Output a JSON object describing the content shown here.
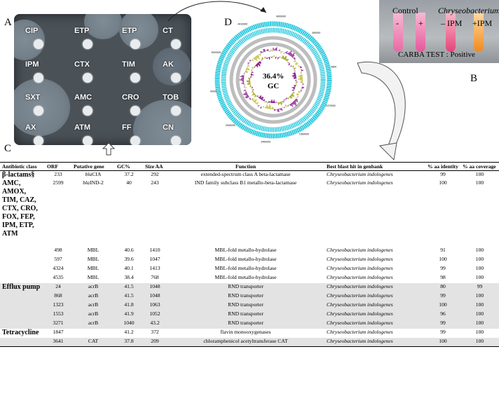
{
  "panels": {
    "a": "A",
    "b": "B",
    "c": "C",
    "d": "D"
  },
  "plate_disks": [
    "CIP",
    "ETP",
    "ETP",
    "CT",
    "IPM",
    "CTX",
    "TIM",
    "AK",
    "SXT",
    "AMC",
    "CRO",
    "TOB",
    "AX",
    "ATM",
    "FF",
    "CN"
  ],
  "carba_test": {
    "control_label": "Control",
    "minus": "-",
    "plus": "+",
    "organism": "Chryseobacterium",
    "minus_ipm": "– IPM",
    "plus_ipm": "+IPM",
    "result": "CARBA TEST : Positive"
  },
  "genome": {
    "gc_percent": "36.4%",
    "gc_label": "GC",
    "ticks": [
      "4900000",
      "490000",
      "980000",
      "1470000",
      "1960000",
      "2450000",
      "2940000",
      "3430000",
      "3920000",
      "4410000"
    ]
  },
  "table": {
    "headers": {
      "class": "Antibiotic class",
      "orf": "ORF",
      "gene": "Putative gene",
      "gc": "GC%",
      "size": "Size AA",
      "function": "Function",
      "blast": "Best blast hit in genbank",
      "identity": "% aa identity",
      "coverage": "% aa coverage"
    },
    "groups": [
      {
        "class": "β-lactams§ AMC, AMOX, TIM, CAZ, CTX, CRO, FOX, FEP, IPM, ETP, ATM",
        "rows": [
          {
            "orf": "233",
            "gene": "blaCIA",
            "gc": "37.2",
            "size": "292",
            "function": "extended-spectrum class A beta-lactamase",
            "blast": "Chryseobacterium indologenes",
            "identity": "99",
            "coverage": "100"
          },
          {
            "orf": "2599",
            "gene": "blaIND-2",
            "gc": "40",
            "size": "243",
            "function": "IND family subclass B1 metallo-beta-lactamase",
            "blast": "Chryseobacterium indologenes",
            "identity": "100",
            "coverage": "100"
          },
          {
            "orf": "498",
            "gene": "MBL",
            "gc": "40.6",
            "size": "1410",
            "function": "MBL-fold metallo-hydrolase",
            "blast": "Chryseobacterium indologenes",
            "identity": "91",
            "coverage": "100"
          },
          {
            "orf": "597",
            "gene": "MBL",
            "gc": "39.6",
            "size": "1047",
            "function": "MBL-fold metallo-hydrolase",
            "blast": "Chryseobacterium indologenes",
            "identity": "100",
            "coverage": "100"
          },
          {
            "orf": "4324",
            "gene": "MBL",
            "gc": "40.1",
            "size": "1413",
            "function": "MBL-fold metallo-hydrolase",
            "blast": "Chryseobacterium indologenes",
            "identity": "99",
            "coverage": "100"
          },
          {
            "orf": "4535",
            "gene": "MBL",
            "gc": "38.4",
            "size": "768",
            "function": "MBL-fold metallo-hydrolase",
            "blast": "Chryseobacterium indologenes",
            "identity": "98",
            "coverage": "100"
          }
        ]
      },
      {
        "class": "Efflux pump",
        "rows": [
          {
            "orf": "24",
            "gene": "acrB",
            "gc": "41.5",
            "size": "1048",
            "function": "RND transporter",
            "blast": "Chryseobacterium indologenes",
            "identity": "80",
            "coverage": "99"
          },
          {
            "orf": "868",
            "gene": "acrB",
            "gc": "41.5",
            "size": "1048",
            "function": "RND transporter",
            "blast": "Chryseobacterium indologenes",
            "identity": "99",
            "coverage": "100"
          },
          {
            "orf": "1323",
            "gene": "acrB",
            "gc": "41.8",
            "size": "1063",
            "function": "RND transporter",
            "blast": "Chryseobacterium indologenes",
            "identity": "100",
            "coverage": "100"
          },
          {
            "orf": "1553",
            "gene": "acrB",
            "gc": "41.9",
            "size": "1052",
            "function": "RND transporter",
            "blast": "Chryseobacterium indologenes",
            "identity": "96",
            "coverage": "100"
          },
          {
            "orf": "3271",
            "gene": "acrB",
            "gc": "1040",
            "size": "43.2",
            "function": "RND transporter",
            "blast": "Chryseobacterium indologenes",
            "identity": "99",
            "coverage": "100"
          }
        ]
      },
      {
        "class": "Tetracycline",
        "rows": [
          {
            "orf": "1847",
            "gene": "",
            "gc": "41.2",
            "size": "372",
            "function": "flavin monooxygenases",
            "blast": "Chryseobacterium indologenes",
            "identity": "99",
            "coverage": "100"
          }
        ]
      },
      {
        "class": "",
        "rows": [
          {
            "orf": "3641",
            "gene": "CAT",
            "gc": "37.8",
            "size": "209",
            "function": "chloramphenicol acetyltransferase CAT",
            "blast": "Chryseobacterium indologenes",
            "identity": "100",
            "coverage": "100"
          }
        ]
      }
    ]
  }
}
